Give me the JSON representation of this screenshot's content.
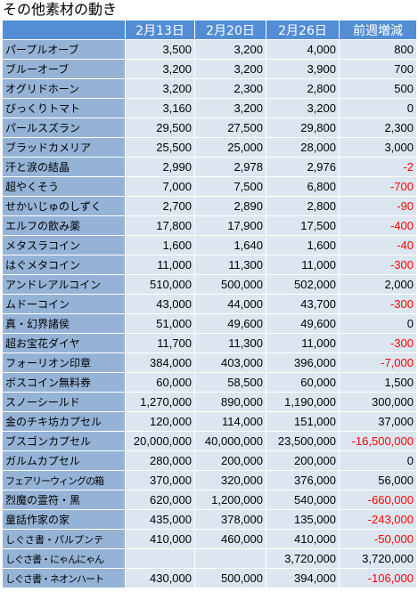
{
  "title": "その他素材の動き",
  "table": {
    "header": [
      null,
      "2月13日",
      "2月20日",
      "2月26日",
      "前週増減"
    ],
    "rows": [
      [
        "パープルオーブ",
        "3,500",
        "3,200",
        "4,000",
        "800"
      ],
      [
        "ブルーオーブ",
        "3,200",
        "3,200",
        "3,900",
        "700"
      ],
      [
        "オグリドホーン",
        "3,200",
        "2,300",
        "2,800",
        "500"
      ],
      [
        "びっくりトマト",
        "3,160",
        "3,200",
        "3,200",
        "0"
      ],
      [
        "パールスズラン",
        "29,500",
        "27,500",
        "29,800",
        "2,300"
      ],
      [
        "ブラッドカメリア",
        "25,500",
        "25,000",
        "28,000",
        "3,000"
      ],
      [
        "汗と涙の結晶",
        "2,990",
        "2,978",
        "2,976",
        "-2"
      ],
      [
        "超やくそう",
        "7,000",
        "7,500",
        "6,800",
        "-700"
      ],
      [
        "せかいじゅのしずく",
        "2,700",
        "2,890",
        "2,800",
        "-90"
      ],
      [
        "エルフの飲み薬",
        "17,800",
        "17,900",
        "17,500",
        "-400"
      ],
      [
        "メタスラコイン",
        "1,600",
        "1,640",
        "1,600",
        "-40"
      ],
      [
        "はぐメタコイン",
        "11,000",
        "11,300",
        "11,000",
        "-300"
      ],
      [
        "アンドレアルコイン",
        "510,000",
        "500,000",
        "502,000",
        "2,000"
      ],
      [
        "ムドーコイン",
        "43,000",
        "44,000",
        "43,700",
        "-300"
      ],
      [
        "真・幻界諸侯",
        "51,000",
        "49,600",
        "49,600",
        "0"
      ],
      [
        "超お宝花ダイヤ",
        "11,700",
        "11,300",
        "11,000",
        "-300"
      ],
      [
        "フォーリオン印章",
        "384,000",
        "403,000",
        "396,000",
        "-7,000"
      ],
      [
        "ボスコイン無料券",
        "60,000",
        "58,500",
        "60,000",
        "1,500"
      ],
      [
        "スノーシールド",
        "1,270,000",
        "890,000",
        "1,190,000",
        "300,000"
      ],
      [
        "金のチキ坊カプセル",
        "120,000",
        "114,000",
        "151,000",
        "37,000"
      ],
      [
        "ブスゴンカプセル",
        "20,000,000",
        "40,000,000",
        "23,500,000",
        "-16,500,000"
      ],
      [
        "ガルムカプセル",
        "280,000",
        "200,000",
        "200,000",
        "0"
      ],
      [
        "フェアリーウィングの箱",
        "370,000",
        "320,000",
        "376,000",
        "56,000"
      ],
      [
        "烈魔の霊符・黒",
        "620,000",
        "1,200,000",
        "540,000",
        "-660,000"
      ],
      [
        "童話作家の家",
        "435,000",
        "378,000",
        "135,000",
        "-243,000"
      ],
      [
        "しぐさ書・パルプンテ",
        "410,000",
        "460,000",
        "410,000",
        "-50,000"
      ],
      [
        "しぐさ書・にゃんにゃん",
        null,
        null,
        "3,720,000",
        "3,720,000"
      ],
      [
        "しぐさ書・ネオンハート",
        "430,000",
        "500,000",
        "394,000",
        "-106,000"
      ]
    ]
  }
}
